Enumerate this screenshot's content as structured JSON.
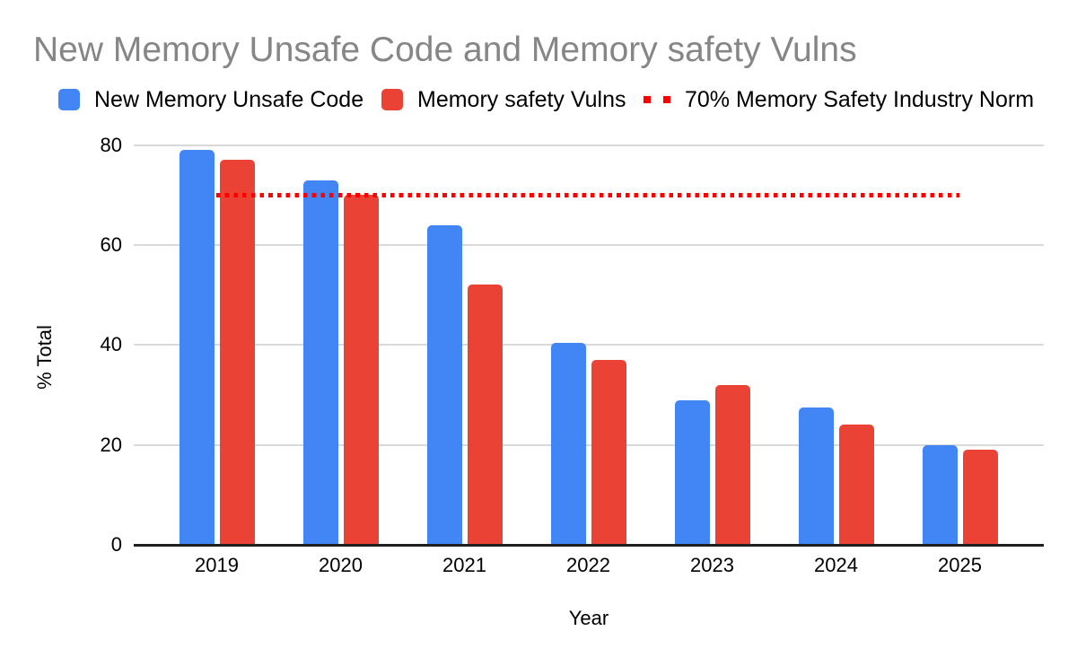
{
  "chart_data": {
    "type": "bar",
    "title": "New Memory Unsafe Code and Memory safety Vulns",
    "xlabel": "Year",
    "ylabel": "% Total",
    "categories": [
      "2019",
      "2020",
      "2021",
      "2022",
      "2023",
      "2024",
      "2025"
    ],
    "series": [
      {
        "name": "New Memory Unsafe Code",
        "color": "#4285F4",
        "values": [
          79,
          73,
          64,
          40.5,
          29,
          27.5,
          20
        ]
      },
      {
        "name": "Memory safety Vulns",
        "color": "#EA4335",
        "values": [
          77,
          70,
          52,
          37,
          32,
          24,
          19
        ]
      }
    ],
    "reference_line": {
      "name": "70% Memory Safety Industry Norm",
      "value": 70,
      "color": "#ff0000",
      "style": "dotted"
    },
    "ylim": [
      0,
      80
    ],
    "yticks": [
      0,
      20,
      40,
      60,
      80
    ],
    "grid": true,
    "legend_position": "top"
  },
  "styles": {
    "title_color": "#868686",
    "grid_color": "#d9d9d9",
    "axis_color": "#1f1f1f",
    "text_color": "#000000",
    "background": "#ffffff"
  }
}
